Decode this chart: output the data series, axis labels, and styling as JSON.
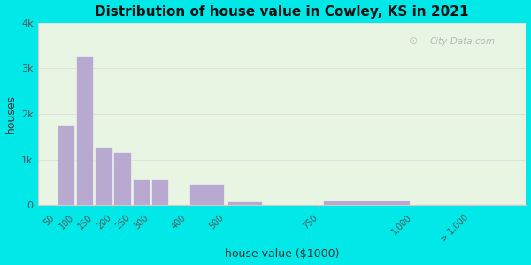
{
  "title": "Distribution of house value in Cowley, KS in 2021",
  "xlabel": "house value ($1000)",
  "ylabel": "houses",
  "bar_color": "#b8a9d0",
  "bar_edge_color": "#f0f0f0",
  "background_outer": "#00e8e8",
  "background_plot": "#e8f5e2",
  "categories": [
    "50",
    "100",
    "150",
    "200",
    "250",
    "300",
    "400",
    "500",
    "750",
    "1,000",
    "> 1,000"
  ],
  "x_positions": [
    50,
    100,
    150,
    200,
    250,
    300,
    400,
    500,
    750,
    1000,
    1150
  ],
  "bar_widths": [
    50,
    50,
    50,
    50,
    50,
    50,
    100,
    100,
    250,
    250,
    150
  ],
  "values": [
    1750,
    3280,
    1280,
    1160,
    560,
    560,
    480,
    80,
    100,
    30,
    30
  ],
  "ylim": [
    0,
    4000
  ],
  "yticks": [
    0,
    1000,
    2000,
    3000,
    4000
  ],
  "ytick_labels": [
    "0",
    "1k",
    "2k",
    "3k",
    "4k"
  ],
  "xtick_positions": [
    50,
    100,
    150,
    200,
    250,
    300,
    400,
    500,
    750,
    1000,
    1150
  ],
  "xtick_labels": [
    "50",
    "100",
    "150",
    "200",
    "250",
    "300",
    "400",
    "500",
    "750",
    "1,000",
    "> 1,000"
  ],
  "grid_color": "#dddddd",
  "watermark": "City-Data.com",
  "xlim": [
    0,
    1300
  ]
}
